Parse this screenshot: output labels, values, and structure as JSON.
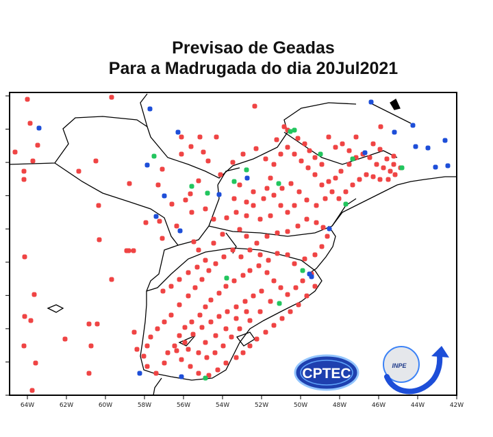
{
  "title": {
    "line1": "Previsao  de  Geadas",
    "line2": "Para a Madrugada do dia 20Jul2021"
  },
  "axis": {
    "x_ticks": [
      "64W",
      "62W",
      "60W",
      "58W",
      "56W",
      "54W",
      "52W",
      "50W",
      "48W",
      "46W",
      "44W",
      "42W"
    ],
    "y_ticks": [
      "",
      "",
      "",
      "",
      "",
      "",
      "",
      "",
      "",
      ""
    ]
  },
  "legend_colors": {
    "red": "#ef4444",
    "green": "#22c55e",
    "blue": "#1d4ed8"
  },
  "logos": {
    "cptec": "CPTEC",
    "inpe": "INPE"
  },
  "points": {
    "red": [
      [
        40,
        145
      ],
      [
        44,
        180
      ],
      [
        22,
        222
      ],
      [
        55,
        212
      ],
      [
        35,
        250
      ],
      [
        48,
        235
      ],
      [
        35,
        262
      ],
      [
        163,
        142
      ],
      [
        140,
        235
      ],
      [
        115,
        250
      ],
      [
        189,
        268
      ],
      [
        231,
        270
      ],
      [
        237,
        247
      ],
      [
        265,
        225
      ],
      [
        265,
        200
      ],
      [
        279,
        214
      ],
      [
        292,
        200
      ],
      [
        297,
        222
      ],
      [
        304,
        235
      ],
      [
        316,
        200
      ],
      [
        251,
        298
      ],
      [
        271,
        292
      ],
      [
        258,
        330
      ],
      [
        237,
        348
      ],
      [
        213,
        325
      ],
      [
        145,
        350
      ],
      [
        144,
        300
      ],
      [
        188,
        366
      ],
      [
        185,
        366
      ],
      [
        195,
        366
      ],
      [
        233,
        323
      ],
      [
        290,
        264
      ],
      [
        278,
        283
      ],
      [
        300,
        305
      ],
      [
        312,
        320
      ],
      [
        331,
        318
      ],
      [
        280,
        310
      ],
      [
        283,
        353
      ],
      [
        290,
        365
      ],
      [
        312,
        355
      ],
      [
        325,
        342
      ],
      [
        342,
        290
      ],
      [
        345,
        310
      ],
      [
        360,
        295
      ],
      [
        370,
        280
      ],
      [
        350,
        270
      ],
      [
        322,
        255
      ],
      [
        340,
        237
      ],
      [
        355,
        225
      ],
      [
        374,
        217
      ],
      [
        388,
        232
      ],
      [
        372,
        155
      ],
      [
        415,
        185
      ],
      [
        404,
        204
      ],
      [
        420,
        190
      ],
      [
        435,
        202
      ],
      [
        445,
        210
      ],
      [
        452,
        220
      ],
      [
        460,
        230
      ],
      [
        470,
        240
      ],
      [
        480,
        200
      ],
      [
        490,
        215
      ],
      [
        500,
        210
      ],
      [
        510,
        220
      ],
      [
        520,
        230
      ],
      [
        530,
        225
      ],
      [
        540,
        230
      ],
      [
        550,
        240
      ],
      [
        560,
        245
      ],
      [
        570,
        250
      ],
      [
        575,
        240
      ],
      [
        565,
        232
      ],
      [
        555,
        218
      ],
      [
        545,
        210
      ],
      [
        556,
        185
      ],
      [
        520,
        200
      ],
      [
        510,
        240
      ],
      [
        498,
        250
      ],
      [
        490,
        260
      ],
      [
        480,
        265
      ],
      [
        470,
        270
      ],
      [
        460,
        255
      ],
      [
        450,
        245
      ],
      [
        440,
        235
      ],
      [
        430,
        225
      ],
      [
        420,
        215
      ],
      [
        410,
        225
      ],
      [
        400,
        240
      ],
      [
        395,
        260
      ],
      [
        390,
        275
      ],
      [
        385,
        290
      ],
      [
        400,
        285
      ],
      [
        412,
        275
      ],
      [
        425,
        268
      ],
      [
        437,
        280
      ],
      [
        448,
        292
      ],
      [
        462,
        300
      ],
      [
        475,
        290
      ],
      [
        485,
        280
      ],
      [
        495,
        290
      ],
      [
        505,
        280
      ],
      [
        515,
        270
      ],
      [
        525,
        262
      ],
      [
        535,
        255
      ],
      [
        545,
        258
      ],
      [
        555,
        262
      ],
      [
        567,
        262
      ],
      [
        577,
        255
      ],
      [
        585,
        245
      ],
      [
        575,
        228
      ],
      [
        430,
        300
      ],
      [
        420,
        310
      ],
      [
        410,
        300
      ],
      [
        395,
        315
      ],
      [
        380,
        320
      ],
      [
        370,
        300
      ],
      [
        360,
        315
      ],
      [
        350,
        335
      ],
      [
        360,
        345
      ],
      [
        375,
        355
      ],
      [
        390,
        345
      ],
      [
        405,
        340
      ],
      [
        420,
        338
      ],
      [
        435,
        330
      ],
      [
        448,
        320
      ],
      [
        462,
        325
      ],
      [
        472,
        332
      ],
      [
        478,
        345
      ],
      [
        470,
        360
      ],
      [
        460,
        372
      ],
      [
        445,
        378
      ],
      [
        430,
        385
      ],
      [
        420,
        372
      ],
      [
        405,
        370
      ],
      [
        392,
        380
      ],
      [
        380,
        372
      ],
      [
        365,
        365
      ],
      [
        352,
        375
      ],
      [
        340,
        365
      ],
      [
        327,
        375
      ],
      [
        315,
        385
      ],
      [
        305,
        395
      ],
      [
        295,
        408
      ],
      [
        285,
        420
      ],
      [
        275,
        432
      ],
      [
        262,
        445
      ],
      [
        250,
        460
      ],
      [
        240,
        470
      ],
      [
        230,
        480
      ],
      [
        220,
        492
      ],
      [
        215,
        505
      ],
      [
        210,
        520
      ],
      [
        215,
        535
      ],
      [
        228,
        545
      ],
      [
        240,
        530
      ],
      [
        245,
        515
      ],
      [
        255,
        505
      ],
      [
        262,
        490
      ],
      [
        270,
        478
      ],
      [
        280,
        470
      ],
      [
        292,
        460
      ],
      [
        300,
        448
      ],
      [
        308,
        438
      ],
      [
        320,
        428
      ],
      [
        330,
        418
      ],
      [
        342,
        410
      ],
      [
        355,
        402
      ],
      [
        365,
        395
      ],
      [
        378,
        388
      ],
      [
        390,
        398
      ],
      [
        400,
        410
      ],
      [
        410,
        420
      ],
      [
        420,
        430
      ],
      [
        432,
        420
      ],
      [
        442,
        410
      ],
      [
        455,
        400
      ],
      [
        460,
        418
      ],
      [
        448,
        432
      ],
      [
        436,
        445
      ],
      [
        424,
        455
      ],
      [
        412,
        465
      ],
      [
        400,
        475
      ],
      [
        388,
        485
      ],
      [
        375,
        495
      ],
      [
        365,
        505
      ],
      [
        355,
        515
      ],
      [
        345,
        522
      ],
      [
        330,
        530
      ],
      [
        318,
        540
      ],
      [
        305,
        548
      ],
      [
        290,
        545
      ],
      [
        278,
        535
      ],
      [
        265,
        525
      ],
      [
        258,
        512
      ],
      [
        270,
        500
      ],
      [
        282,
        488
      ],
      [
        295,
        478
      ],
      [
        308,
        470
      ],
      [
        320,
        462
      ],
      [
        332,
        455
      ],
      [
        345,
        448
      ],
      [
        358,
        440
      ],
      [
        370,
        432
      ],
      [
        382,
        425
      ],
      [
        395,
        440
      ],
      [
        380,
        455
      ],
      [
        365,
        468
      ],
      [
        350,
        480
      ],
      [
        338,
        492
      ],
      [
        326,
        505
      ],
      [
        314,
        515
      ],
      [
        302,
        522
      ],
      [
        290,
        515
      ],
      [
        300,
        500
      ],
      [
        315,
        490
      ],
      [
        330,
        480
      ],
      [
        345,
        465
      ],
      [
        360,
        455
      ],
      [
        238,
        425
      ],
      [
        250,
        418
      ],
      [
        262,
        408
      ],
      [
        275,
        398
      ],
      [
        288,
        390
      ],
      [
        300,
        380
      ],
      [
        36,
        375
      ],
      [
        50,
        430
      ],
      [
        36,
        462
      ],
      [
        45,
        468
      ],
      [
        35,
        505
      ],
      [
        52,
        530
      ],
      [
        47,
        570
      ],
      [
        95,
        495
      ],
      [
        130,
        473
      ],
      [
        142,
        473
      ],
      [
        133,
        505
      ],
      [
        130,
        545
      ],
      [
        163,
        408
      ],
      [
        196,
        485
      ],
      [
        200,
        510
      ],
      [
        275,
        510
      ]
    ],
    "green": [
      [
        424,
        192
      ],
      [
        430,
        190
      ],
      [
        468,
        225
      ],
      [
        515,
        232
      ],
      [
        225,
        228
      ],
      [
        280,
        272
      ],
      [
        303,
        282
      ],
      [
        342,
        265
      ],
      [
        360,
        248
      ],
      [
        407,
        268
      ],
      [
        505,
        298
      ],
      [
        587,
        245
      ],
      [
        331,
        406
      ],
      [
        408,
        443
      ],
      [
        300,
        552
      ],
      [
        442,
        395
      ]
    ],
    "blue": [
      [
        219,
        159
      ],
      [
        57,
        187
      ],
      [
        260,
        193
      ],
      [
        215,
        241
      ],
      [
        240,
        286
      ],
      [
        228,
        316
      ],
      [
        263,
        337
      ],
      [
        320,
        284
      ],
      [
        361,
        260
      ],
      [
        481,
        334
      ],
      [
        542,
        149
      ],
      [
        576,
        193
      ],
      [
        603,
        183
      ],
      [
        607,
        214
      ],
      [
        625,
        216
      ],
      [
        650,
        205
      ],
      [
        636,
        244
      ],
      [
        654,
        242
      ],
      [
        533,
        223
      ],
      [
        455,
        404
      ],
      [
        204,
        545
      ],
      [
        265,
        550
      ],
      [
        452,
        400
      ]
    ]
  }
}
